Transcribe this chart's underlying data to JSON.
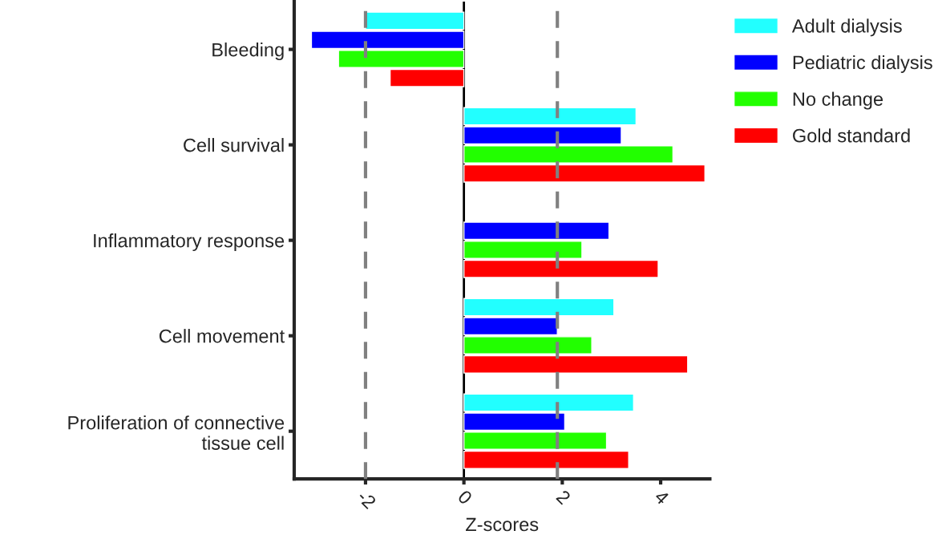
{
  "chart_data": {
    "type": "bar",
    "orientation": "horizontal",
    "xlabel": "Z-scores",
    "categories": [
      "Bleeding",
      "Cell survival",
      "Inflammatory response",
      "Cell movement",
      "Proliferation of connective\ntissue cell"
    ],
    "series": [
      {
        "name": "Adult dialysis",
        "color": "#22ffff",
        "values": [
          -2.0,
          3.5,
          null,
          3.05,
          3.45
        ]
      },
      {
        "name": "Pediatric dialysis",
        "color": "#0000ff",
        "values": [
          -3.1,
          3.2,
          2.95,
          1.9,
          2.05
        ]
      },
      {
        "name": "No change",
        "color": "#22ff00",
        "values": [
          -2.55,
          4.25,
          2.4,
          2.6,
          2.9
        ]
      },
      {
        "name": "Gold standard",
        "color": "#ff0000",
        "values": [
          -1.5,
          4.9,
          3.95,
          4.55,
          3.35
        ]
      }
    ],
    "xlim": [
      -3.45,
      5.0
    ],
    "xticks": [
      -2,
      0,
      2,
      4
    ],
    "ref_lines": [
      {
        "axis": "x",
        "value": -2,
        "color": "#808080",
        "line_style": "dashed"
      },
      {
        "axis": "x",
        "value": 1.9,
        "color": "#808080",
        "line_style": "dashed"
      },
      {
        "axis": "x",
        "value": 0,
        "color": "#000000",
        "line_style": "solid"
      }
    ],
    "grid": false,
    "legend": "top right"
  }
}
